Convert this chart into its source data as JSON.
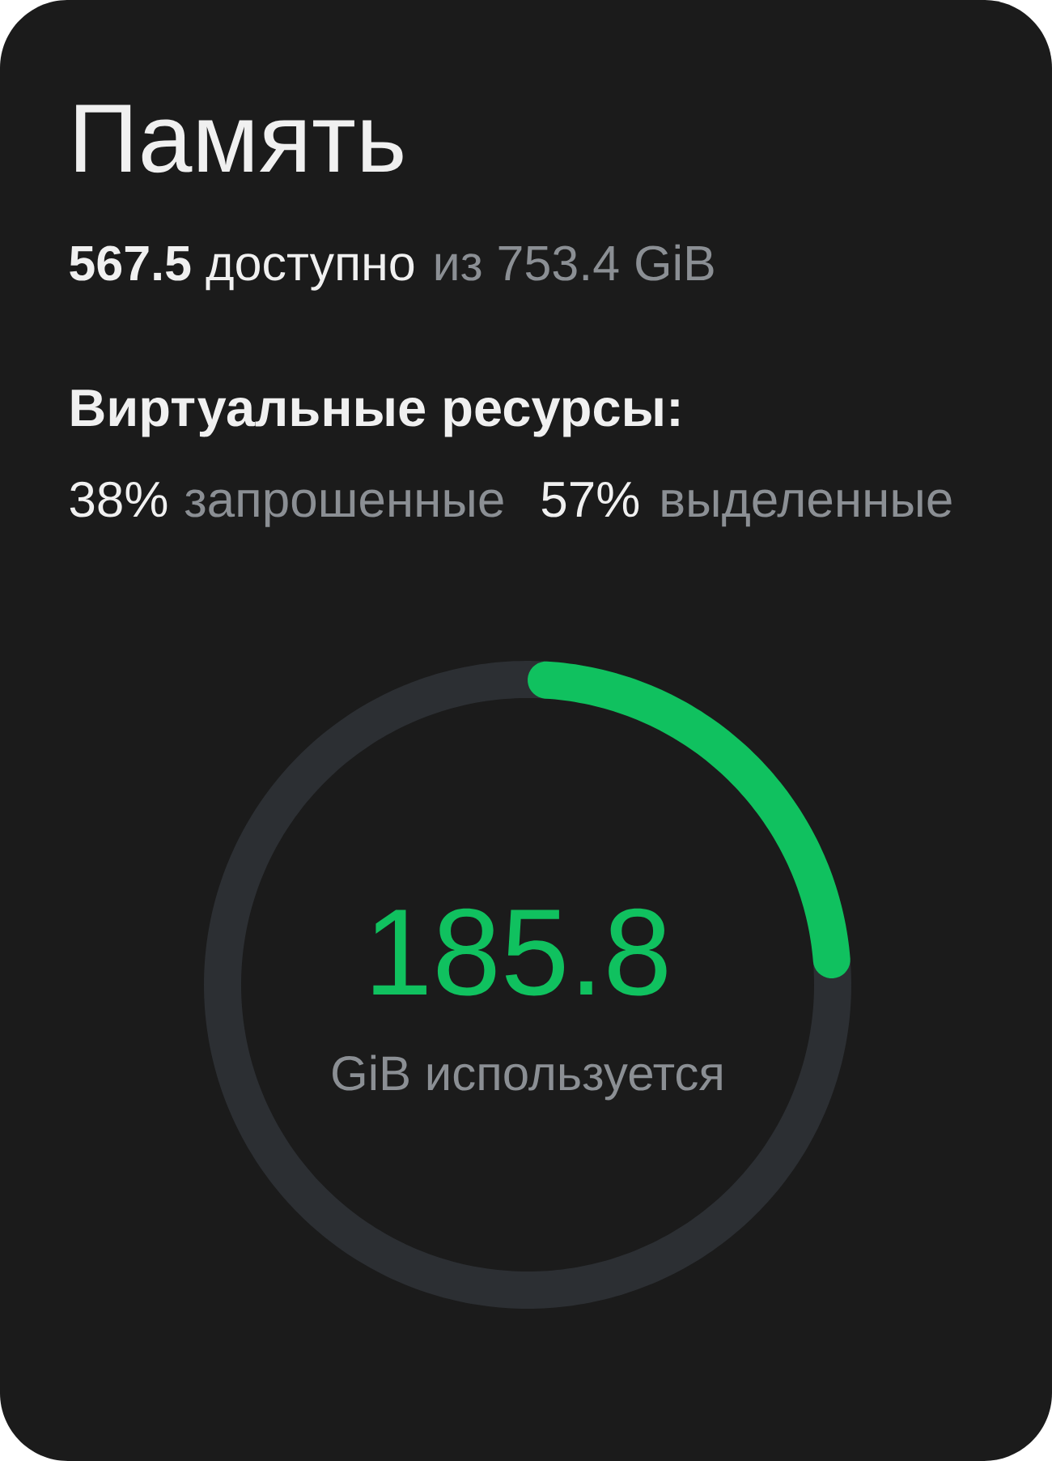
{
  "chart_data": {
    "type": "donut",
    "title": "Память",
    "subtitle": "**567.5** доступно",
    "categories": [
      null,
      null
    ],
    "values": [
      185.8,
      567.5
    ],
    "colors": [
      "#10c15f",
      "#2c2f33"
    ],
    "value_labels": [
      "185.8",
      null
    ],
    "annotations": [
      "из 753.4 GiB",
      "Виртуальные ресурсы:",
      "38%",
      "запрошенные",
      "57%",
      "выделенные",
      "GiB используется"
    ]
  }
}
